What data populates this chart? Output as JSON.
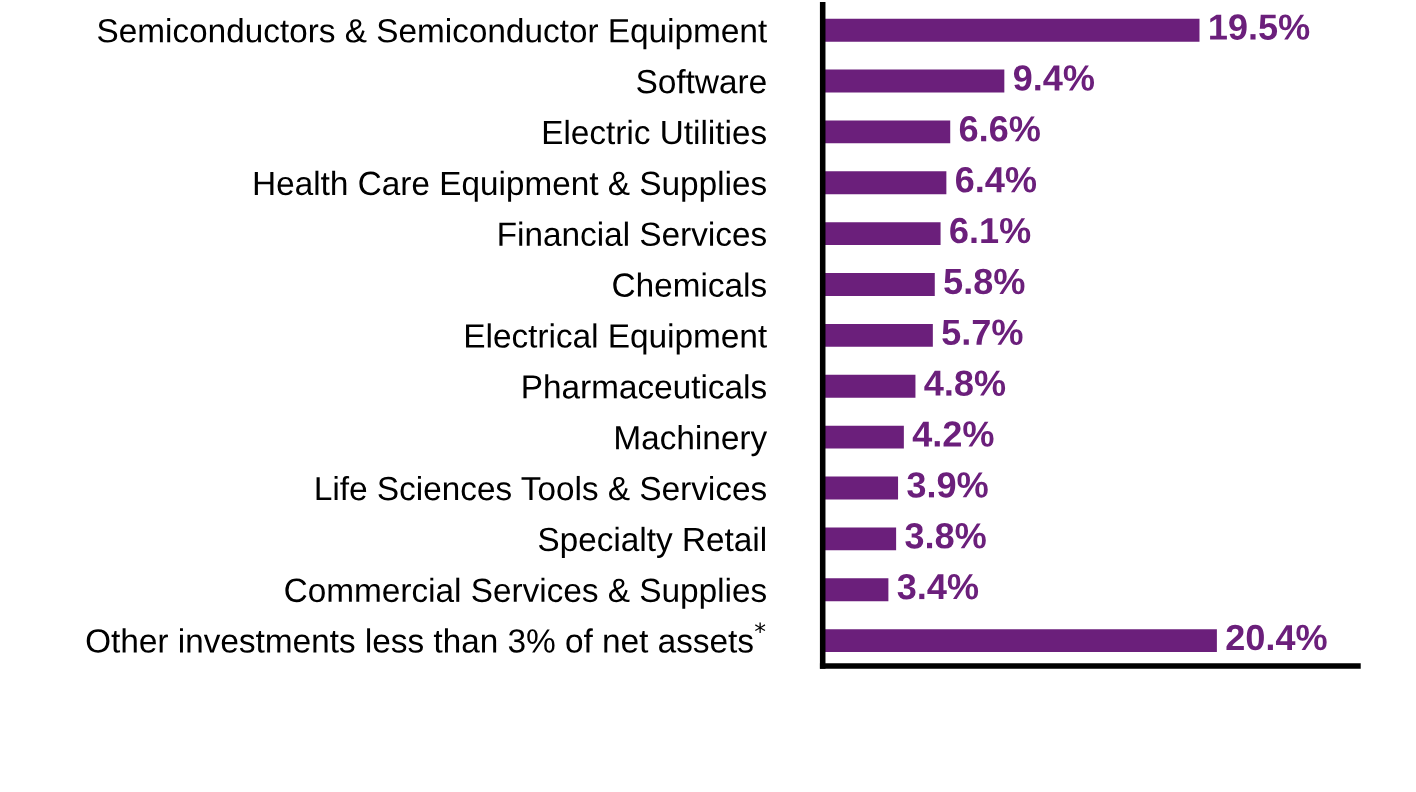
{
  "chart_data": {
    "type": "bar",
    "orientation": "horizontal",
    "categories": [
      "Semiconductors & Semiconductor Equipment",
      "Software",
      "Electric Utilities",
      "Health Care Equipment & Supplies",
      "Financial Services",
      "Chemicals",
      "Electrical Equipment",
      "Pharmaceuticals",
      "Machinery",
      "Life Sciences Tools & Services",
      "Specialty Retail",
      "Commercial Services & Supplies",
      "Other investments less than 3% of net assets$^{*}$"
    ],
    "values": [
      19.5,
      9.4,
      6.6,
      6.4,
      6.1,
      5.8,
      5.7,
      4.8,
      4.2,
      3.9,
      3.8,
      3.4,
      20.4
    ],
    "value_labels": [
      "19.5%",
      "9.4%",
      "6.6%",
      "6.4%",
      "6.1%",
      "5.8%",
      "5.7%",
      "4.8%",
      "4.2%",
      "3.9%",
      "3.8%",
      "3.4%",
      "20.4%"
    ],
    "color": "#6b1f7b",
    "xlim": [
      0,
      27.7
    ],
    "tick_labels": "y",
    "grid": false,
    "legend": false
  }
}
